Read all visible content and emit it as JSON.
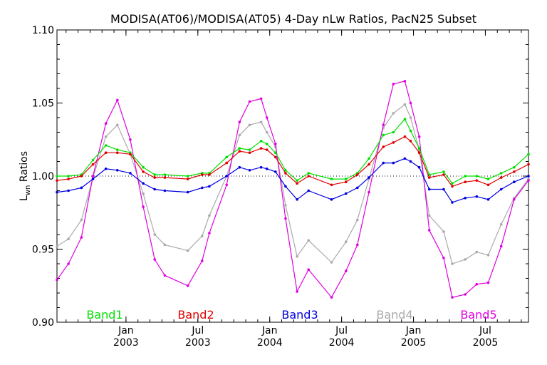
{
  "chart_data": {
    "type": "line",
    "title": "MODISA(AT06)/MODISA(AT05) 4-Day nLw Ratios, PacN25 Subset",
    "ylabel_main": "L",
    "ylabel_sub": "wn",
    "ylabel_rest": " Ratios",
    "ylim": [
      0.9,
      1.1
    ],
    "y_ticks": [
      "0.90",
      "0.95",
      "1.00",
      "1.05",
      "1.10"
    ],
    "x_ticks": [
      {
        "month": "Jan",
        "year": "2003",
        "t": 2003.0
      },
      {
        "month": "Jul",
        "year": "2003",
        "t": 2003.5
      },
      {
        "month": "Jan",
        "year": "2004",
        "t": 2004.0
      },
      {
        "month": "Jul",
        "year": "2004",
        "t": 2004.5
      },
      {
        "month": "Jan",
        "year": "2005",
        "t": 2005.0
      },
      {
        "month": "Jul",
        "year": "2005",
        "t": 2005.5
      }
    ],
    "xlim": [
      2002.52,
      2005.8
    ],
    "reference_line": 1.0,
    "x": [
      2002.52,
      2002.6,
      2002.69,
      2002.77,
      2002.86,
      2002.94,
      2003.03,
      2003.12,
      2003.2,
      2003.27,
      2003.43,
      2003.53,
      2003.58,
      2003.7,
      2003.79,
      2003.86,
      2003.94,
      2003.98,
      2004.04,
      2004.11,
      2004.19,
      2004.27,
      2004.43,
      2004.53,
      2004.61,
      2004.69,
      2004.79,
      2004.86,
      2004.94,
      2004.98,
      2005.04,
      2005.11,
      2005.21,
      2005.27,
      2005.36,
      2005.44,
      2005.52,
      2005.61,
      2005.7,
      2005.8
    ],
    "series": [
      {
        "name": "Band1",
        "color": "#00e000",
        "values": [
          1.0,
          1.0,
          1.001,
          1.011,
          1.021,
          1.018,
          1.016,
          1.006,
          1.001,
          1.001,
          1.0,
          1.002,
          1.002,
          1.013,
          1.019,
          1.018,
          1.024,
          1.022,
          1.016,
          1.004,
          0.997,
          1.002,
          0.998,
          0.998,
          1.002,
          1.012,
          1.028,
          1.03,
          1.039,
          1.031,
          1.019,
          1.001,
          1.003,
          0.995,
          1.0,
          1.0,
          0.998,
          1.002,
          1.006,
          1.015
        ]
      },
      {
        "name": "Band2",
        "color": "#e00000",
        "values": [
          0.997,
          0.998,
          1.0,
          1.008,
          1.016,
          1.016,
          1.015,
          1.003,
          0.999,
          0.999,
          0.998,
          1.001,
          1.001,
          1.009,
          1.017,
          1.016,
          1.019,
          1.018,
          1.013,
          1.002,
          0.995,
          1.0,
          0.994,
          0.996,
          1.001,
          1.008,
          1.02,
          1.023,
          1.027,
          1.024,
          1.016,
          0.999,
          1.001,
          0.993,
          0.996,
          0.997,
          0.994,
          0.999,
          1.003,
          1.008
        ]
      },
      {
        "name": "Band3",
        "color": "#0000e0",
        "values": [
          0.989,
          0.99,
          0.992,
          0.998,
          1.005,
          1.004,
          1.002,
          0.995,
          0.991,
          0.99,
          0.989,
          0.992,
          0.993,
          1.0,
          1.006,
          1.004,
          1.006,
          1.005,
          1.003,
          0.993,
          0.984,
          0.99,
          0.984,
          0.988,
          0.992,
          0.999,
          1.009,
          1.009,
          1.012,
          1.01,
          1.006,
          0.991,
          0.991,
          0.982,
          0.985,
          0.986,
          0.984,
          0.991,
          0.996,
          1.0
        ]
      },
      {
        "name": "Band4",
        "color": "#aaaaaa",
        "values": [
          0.952,
          0.957,
          0.97,
          0.999,
          1.027,
          1.035,
          1.015,
          0.988,
          0.96,
          0.953,
          0.949,
          0.959,
          0.973,
          1.0,
          1.028,
          1.035,
          1.037,
          1.03,
          1.02,
          0.98,
          0.945,
          0.956,
          0.941,
          0.955,
          0.97,
          0.998,
          1.033,
          1.043,
          1.049,
          1.04,
          1.018,
          0.973,
          0.962,
          0.94,
          0.943,
          0.948,
          0.946,
          0.967,
          0.985,
          0.998
        ]
      },
      {
        "name": "Band5",
        "color": "#e000e0",
        "values": [
          0.929,
          0.94,
          0.958,
          1.0,
          1.036,
          1.052,
          1.025,
          0.979,
          0.943,
          0.932,
          0.925,
          0.942,
          0.961,
          0.994,
          1.037,
          1.051,
          1.053,
          1.04,
          1.022,
          0.971,
          0.921,
          0.936,
          0.917,
          0.935,
          0.953,
          0.989,
          1.035,
          1.063,
          1.065,
          1.05,
          1.027,
          0.963,
          0.944,
          0.917,
          0.919,
          0.926,
          0.927,
          0.952,
          0.984,
          0.997
        ]
      }
    ]
  }
}
